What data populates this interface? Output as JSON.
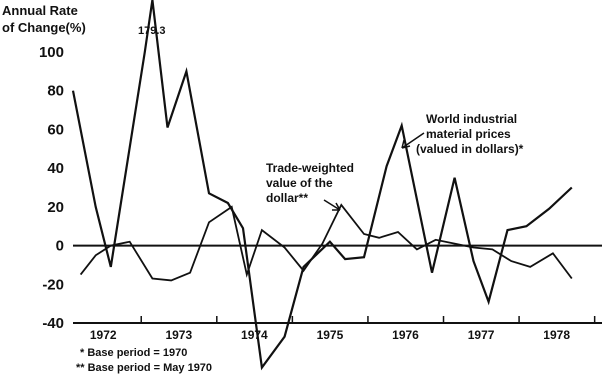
{
  "chart_data": {
    "type": "line",
    "title": "",
    "ylabel_lines": [
      "Annual Rate",
      "of Change(%)"
    ],
    "xlabel": "",
    "ylim": [
      -40,
      100
    ],
    "yticks": [
      100,
      80,
      60,
      40,
      20,
      0,
      -20,
      -40
    ],
    "xlim": [
      1971.6,
      1978.6
    ],
    "xticks": [
      {
        "label": "1972",
        "x": 1972.0
      },
      {
        "label": "1973",
        "x": 1973.0
      },
      {
        "label": "1974",
        "x": 1974.0
      },
      {
        "label": "1975",
        "x": 1975.0
      },
      {
        "label": "1976",
        "x": 1976.0
      },
      {
        "label": "1977",
        "x": 1977.0
      },
      {
        "label": "1978",
        "x": 1978.0
      }
    ],
    "series": [
      {
        "name": "World industrial material prices (valued in dollars)*",
        "label_lines": [
          "World industrial",
          "material prices",
          "(valued in dollars)*"
        ],
        "points": [
          [
            1971.6,
            80
          ],
          [
            1971.9,
            20
          ],
          [
            1972.1,
            -11
          ],
          [
            1972.55,
            100
          ],
          [
            1972.65,
            179.3
          ],
          [
            1972.85,
            61
          ],
          [
            1973.1,
            90
          ],
          [
            1973.4,
            27
          ],
          [
            1973.65,
            22
          ],
          [
            1973.85,
            9
          ],
          [
            1974.1,
            -63
          ],
          [
            1974.4,
            -47
          ],
          [
            1974.65,
            -11
          ],
          [
            1975.0,
            2
          ],
          [
            1975.2,
            -7
          ],
          [
            1975.45,
            -6
          ],
          [
            1975.75,
            41
          ],
          [
            1975.95,
            62
          ],
          [
            1976.35,
            -14
          ],
          [
            1976.65,
            35
          ],
          [
            1976.9,
            -8
          ],
          [
            1977.1,
            -29
          ],
          [
            1977.35,
            8
          ],
          [
            1977.6,
            10
          ],
          [
            1977.9,
            19
          ],
          [
            1978.2,
            30
          ]
        ]
      },
      {
        "name": "Trade-weighted value of the dollar**",
        "label_lines": [
          "Trade-weighted",
          "value of the",
          "dollar**"
        ],
        "points": [
          [
            1971.7,
            -15
          ],
          [
            1971.9,
            -5
          ],
          [
            1972.1,
            0
          ],
          [
            1972.35,
            2
          ],
          [
            1972.65,
            -17
          ],
          [
            1972.9,
            -18
          ],
          [
            1973.15,
            -14
          ],
          [
            1973.4,
            12
          ],
          [
            1973.7,
            20
          ],
          [
            1973.9,
            -15
          ],
          [
            1974.1,
            8
          ],
          [
            1974.4,
            -1
          ],
          [
            1974.65,
            -13
          ],
          [
            1974.9,
            1
          ],
          [
            1975.15,
            21
          ],
          [
            1975.45,
            6
          ],
          [
            1975.65,
            4
          ],
          [
            1975.9,
            7
          ],
          [
            1976.15,
            -2
          ],
          [
            1976.4,
            3
          ],
          [
            1976.65,
            1
          ],
          [
            1976.9,
            -1
          ],
          [
            1977.15,
            -2
          ],
          [
            1977.4,
            -8
          ],
          [
            1977.65,
            -11
          ],
          [
            1977.95,
            -4
          ],
          [
            1978.2,
            -17
          ]
        ]
      }
    ],
    "annotations": [
      {
        "text": "179.3",
        "target": "peak of World industrial material prices (off-scale)"
      }
    ],
    "footnotes": [
      "* Base period = 1970",
      "** Base period = May 1970"
    ],
    "reference_line_y": 0,
    "grid": false
  }
}
